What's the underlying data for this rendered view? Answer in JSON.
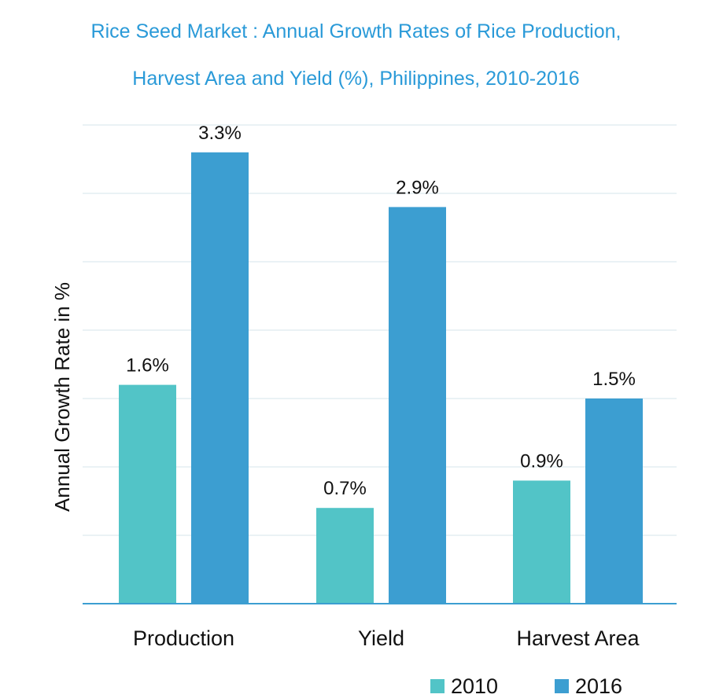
{
  "chart_data": {
    "type": "bar",
    "title_lines": [
      "Rice Seed Market : Annual Growth Rates of Rice Production,",
      "Harvest Area and Yield (%), Philippines, 2010-2016"
    ],
    "categories": [
      "Production",
      "Yield",
      "Harvest Area"
    ],
    "series": [
      {
        "name": "2010",
        "color": "#52C4C7",
        "values": [
          1.6,
          0.7,
          0.9
        ],
        "labels": [
          "1.6%",
          "0.7%",
          "0.9%"
        ]
      },
      {
        "name": "2016",
        "color": "#3C9ED1",
        "values": [
          3.3,
          2.9,
          1.5
        ],
        "labels": [
          "3.3%",
          "2.9%",
          "1.5%"
        ]
      }
    ],
    "xlabel": "",
    "ylabel": "Annual Growth Rate in %",
    "ylim": [
      0,
      3.5
    ],
    "ytick_step": 0.5,
    "grid": true,
    "legend": "bottom-right"
  }
}
